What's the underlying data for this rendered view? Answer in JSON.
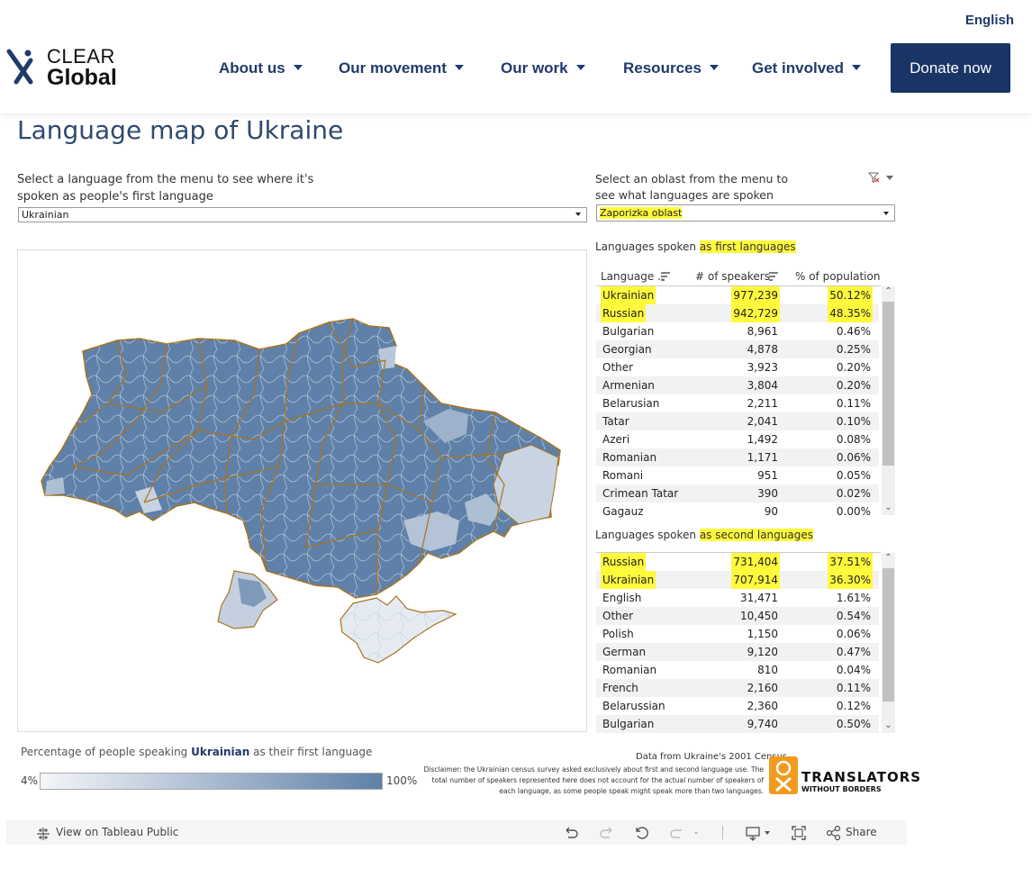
{
  "site": {
    "language_link": "English",
    "logo": {
      "line1": "CLEAR",
      "line2": "Global"
    },
    "nav": [
      {
        "label": "About us"
      },
      {
        "label": "Our movement"
      },
      {
        "label": "Our work"
      },
      {
        "label": "Resources"
      },
      {
        "label": "Get involved"
      }
    ],
    "donate_label": "Donate now",
    "colors": {
      "brand": "#1a3466",
      "highlight": "#fff93c",
      "map_fill": "#5f80a8",
      "map_border": "#a8731e"
    }
  },
  "dashboard": {
    "title": "Language map of Ukraine",
    "language_prompt": [
      "Select a language from the menu to see where it's",
      "spoken as people's first language"
    ],
    "language_selected": "Ukrainian",
    "oblast_prompt": [
      "Select an oblast from the menu to",
      "see what languages are spoken"
    ],
    "oblast_selected": "Zaporizka oblast",
    "first": {
      "title_prefix": "Languages spoken ",
      "title_highlight": "as first languages",
      "headers": [
        "Language ..",
        "# of speakers",
        "% of population"
      ],
      "rows": [
        [
          "Ukrainian",
          "977,239",
          "50.12%"
        ],
        [
          "Russian",
          "942,729",
          "48.35%"
        ],
        [
          "Bulgarian",
          "8,961",
          "0.46%"
        ],
        [
          "Georgian",
          "4,878",
          "0.25%"
        ],
        [
          "Other",
          "3,923",
          "0.20%"
        ],
        [
          "Armenian",
          "3,804",
          "0.20%"
        ],
        [
          "Belarusian",
          "2,211",
          "0.11%"
        ],
        [
          "Tatar",
          "2,041",
          "0.10%"
        ],
        [
          "Azeri",
          "1,492",
          "0.08%"
        ],
        [
          "Romanian",
          "1,171",
          "0.06%"
        ],
        [
          "Romani",
          "951",
          "0.05%"
        ],
        [
          "Crimean Tatar",
          "390",
          "0.02%"
        ],
        [
          "Gagauz",
          "90",
          "0.00%"
        ]
      ]
    },
    "second": {
      "title_prefix": "Languages spoken ",
      "title_highlight": "as second languages",
      "rows": [
        [
          "Russian",
          "731,404",
          "37.51%"
        ],
        [
          "Ukrainian",
          "707,914",
          "36.30%"
        ],
        [
          "English",
          "31,471",
          "1.61%"
        ],
        [
          "Other",
          "10,450",
          "0.54%"
        ],
        [
          "Polish",
          "1,150",
          "0.06%"
        ],
        [
          "German",
          "9,120",
          "0.47%"
        ],
        [
          "Romanian",
          "810",
          "0.04%"
        ],
        [
          "French",
          "2,160",
          "0.11%"
        ],
        [
          "Belarussian",
          "2,360",
          "0.12%"
        ],
        [
          "Bulgarian",
          "9,740",
          "0.50%"
        ]
      ]
    },
    "legend": {
      "label_prefix": "Percentage of people speaking ",
      "label_language": "Ukrainian",
      "label_suffix": " as their first language",
      "min": "4%",
      "max": "100%"
    },
    "source": "Data from Ukraine's 2001 Census",
    "disclaimer": [
      "Disclaimer: the Ukrainian census survey asked exclusively about first and second language use. The",
      "total number of speakers represented here does not account for the actual  number of speakers of",
      "each language, as some people speak might speak more than two languages."
    ],
    "partner_logo": {
      "line1": "TRANSLATORS",
      "line2": "WITHOUT BORDERS"
    }
  },
  "tableau_footer": {
    "view_label": "View on Tableau Public",
    "share_label": "Share"
  }
}
